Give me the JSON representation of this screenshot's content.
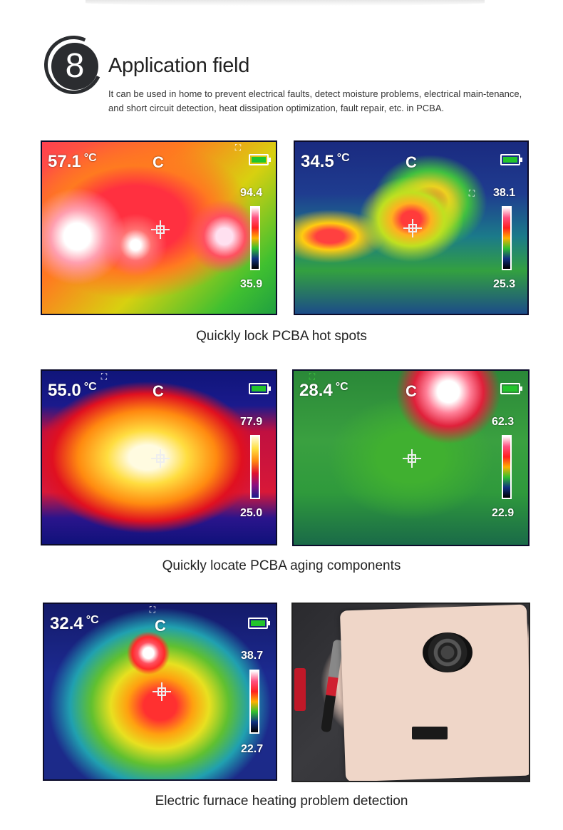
{
  "header": {
    "number": "8",
    "title": "Application field",
    "description": "It can be used in home to prevent electrical faults, detect moisture problems, electrical main-tenance, and short circuit detection, heat dissipation optimization, fault repair, etc. in PCBA."
  },
  "sections": [
    {
      "caption": "Quickly lock PCBA hot spots",
      "images": [
        {
          "temp": "57.1",
          "unit": "°C",
          "mode": "C",
          "max": "94.4",
          "min": "35.9"
        },
        {
          "temp": "34.5",
          "unit": "°C",
          "mode": "C",
          "max": "38.1",
          "min": "25.3"
        }
      ]
    },
    {
      "caption": "Quickly locate PCBA aging components",
      "images": [
        {
          "temp": "55.0",
          "unit": "°C",
          "mode": "C",
          "max": "77.9",
          "min": "25.0"
        },
        {
          "temp": "28.4",
          "unit": "°C",
          "mode": "C",
          "max": "62.3",
          "min": "22.9"
        }
      ]
    },
    {
      "caption": "Electric furnace heating problem detection",
      "images": [
        {
          "temp": "32.4",
          "unit": "°C",
          "mode": "C",
          "max": "38.7",
          "min": "22.7"
        }
      ]
    }
  ],
  "colors": {
    "battery": "#22c52b",
    "badge": "#2b2d30"
  }
}
